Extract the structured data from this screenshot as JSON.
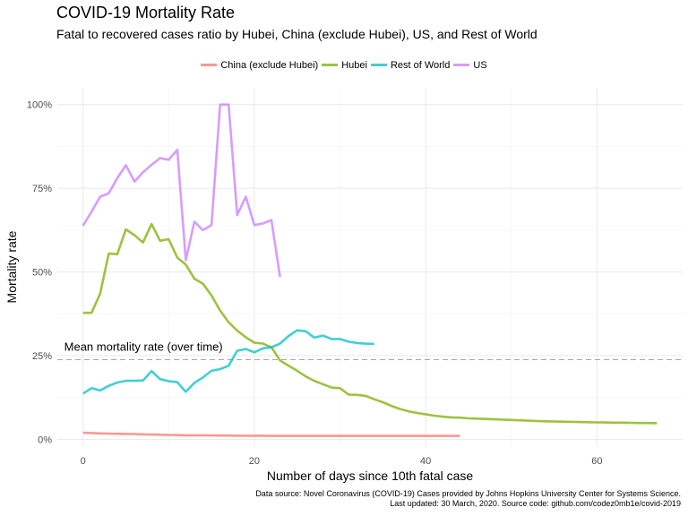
{
  "chart_data": {
    "type": "line",
    "title": "COVID-19 Mortality Rate",
    "subtitle": "Fatal to recovered cases ratio by Hubei, China (exclude Hubei), US, and Rest of World",
    "xlabel": "Number of days since 10th fatal case",
    "ylabel": "Mortality rate",
    "xlim": [
      -3,
      70
    ],
    "ylim": [
      -2,
      105
    ],
    "x_ticks": [
      0,
      20,
      40,
      60
    ],
    "x_tick_labels": [
      "0",
      "20",
      "40",
      "60"
    ],
    "y_ticks": [
      0,
      25,
      50,
      75,
      100
    ],
    "y_tick_labels": [
      "0%",
      "25%",
      "50%",
      "75%",
      "100%"
    ],
    "grid": true,
    "legend_position": "top",
    "mean_line": {
      "value": 23.8,
      "label": "Mean mortality rate (over time)"
    },
    "series": [
      {
        "name": "China (exclude Hubei)",
        "color": "#F8766D",
        "x": [
          0,
          1,
          2,
          3,
          4,
          5,
          6,
          7,
          8,
          9,
          10,
          11,
          12,
          13,
          14,
          15,
          16,
          17,
          18,
          19,
          20,
          21,
          22,
          23,
          24,
          25,
          26,
          27,
          28,
          29,
          30,
          31,
          32,
          33,
          34,
          35,
          36,
          37,
          38,
          39,
          40,
          41,
          42,
          43,
          44
        ],
        "y": [
          2.0,
          1.9,
          1.8,
          1.75,
          1.7,
          1.65,
          1.6,
          1.5,
          1.45,
          1.4,
          1.35,
          1.3,
          1.25,
          1.25,
          1.2,
          1.2,
          1.15,
          1.15,
          1.1,
          1.1,
          1.1,
          1.1,
          1.05,
          1.05,
          1.05,
          1.05,
          1.05,
          1.05,
          1.05,
          1.05,
          1.05,
          1.05,
          1.05,
          1.05,
          1.05,
          1.05,
          1.05,
          1.05,
          1.05,
          1.05,
          1.05,
          1.05,
          1.05,
          1.05,
          1.05
        ]
      },
      {
        "name": "Hubei",
        "color": "#7CAE00",
        "x": [
          0,
          1,
          2,
          3,
          4,
          5,
          6,
          7,
          8,
          9,
          10,
          11,
          12,
          13,
          14,
          15,
          16,
          17,
          18,
          19,
          20,
          21,
          22,
          23,
          24,
          25,
          26,
          27,
          28,
          29,
          30,
          31,
          32,
          33,
          34,
          35,
          36,
          37,
          38,
          39,
          40,
          41,
          42,
          43,
          44,
          45,
          46,
          47,
          48,
          49,
          50,
          51,
          52,
          53,
          54,
          55,
          56,
          57,
          58,
          59,
          60,
          61,
          62,
          63,
          64,
          65,
          66,
          67
        ],
        "y": [
          37.8,
          37.8,
          43.5,
          55.5,
          55.3,
          62.7,
          61.0,
          58.8,
          64.3,
          59.3,
          59.8,
          54.3,
          52.2,
          48.0,
          46.5,
          43.0,
          38.5,
          35.0,
          32.5,
          30.5,
          28.9,
          28.6,
          27.5,
          23.6,
          22.0,
          20.5,
          18.8,
          17.5,
          16.5,
          15.5,
          15.3,
          13.4,
          13.3,
          13.0,
          12.0,
          11.1,
          10.0,
          9.1,
          8.4,
          7.9,
          7.5,
          7.1,
          6.8,
          6.6,
          6.5,
          6.3,
          6.2,
          6.1,
          6.0,
          5.9,
          5.8,
          5.7,
          5.6,
          5.5,
          5.4,
          5.35,
          5.3,
          5.25,
          5.2,
          5.15,
          5.1,
          5.05,
          5.0,
          5.0,
          4.95,
          4.9,
          4.9,
          4.85
        ]
      },
      {
        "name": "Rest of World",
        "color": "#00BFC4",
        "x": [
          0,
          1,
          2,
          3,
          4,
          5,
          6,
          7,
          8,
          9,
          10,
          11,
          12,
          13,
          14,
          15,
          16,
          17,
          18,
          19,
          20,
          21,
          22,
          23,
          24,
          25,
          26,
          27,
          28,
          29,
          30,
          31,
          32,
          33,
          34
        ],
        "y": [
          13.7,
          15.3,
          14.6,
          16.0,
          17.0,
          17.5,
          17.5,
          17.6,
          20.4,
          18.0,
          17.4,
          17.1,
          14.2,
          16.9,
          18.5,
          20.5,
          21.0,
          22.0,
          26.5,
          27.0,
          26.0,
          27.2,
          27.5,
          28.6,
          30.9,
          32.6,
          32.3,
          30.4,
          31.0,
          30.0,
          30.0,
          29.2,
          28.8,
          28.6,
          28.5
        ]
      },
      {
        "name": "US",
        "color": "#C77CFF",
        "x": [
          0,
          1,
          2,
          3,
          4,
          5,
          6,
          7,
          8,
          9,
          10,
          11,
          12,
          13,
          14,
          15,
          16,
          17,
          18,
          19,
          20,
          21,
          22,
          23
        ],
        "y": [
          63.8,
          68.0,
          72.5,
          73.5,
          78.0,
          81.9,
          77.0,
          79.8,
          82.0,
          84.0,
          83.5,
          86.5,
          53.5,
          65.0,
          62.5,
          64.0,
          100.0,
          100.0,
          67.0,
          72.5,
          64.0,
          64.5,
          65.5,
          48.5
        ]
      }
    ],
    "source_note_line1": "Data source: Novel Coronavirus (COVID-19) Cases provided by Johns Hopkins University Center for Systems Science.",
    "source_note_line2": "Last updated: 30 March, 2020. Source code: github.com/codez0mb1e/covid-2019"
  }
}
